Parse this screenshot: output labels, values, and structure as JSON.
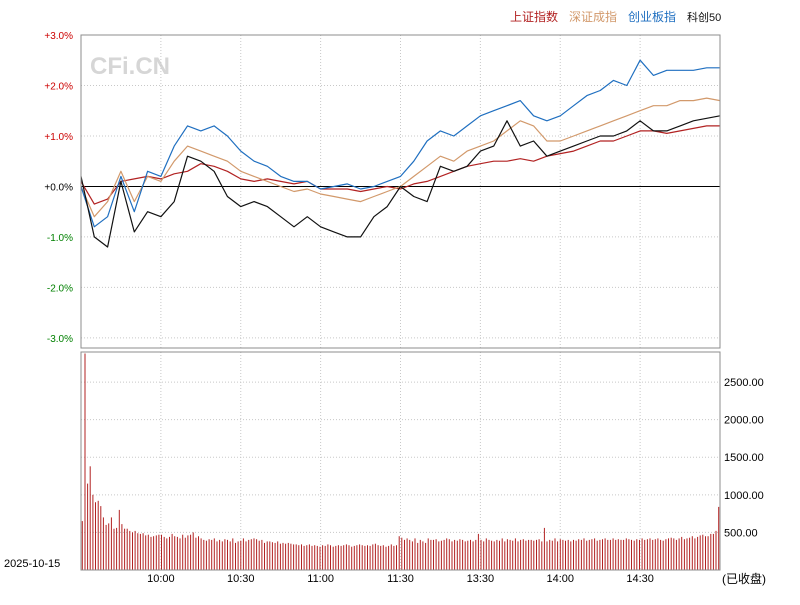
{
  "watermark": "CFi.CN",
  "date_label": "2025-10-15",
  "status_label": "(已收盘)",
  "colors": {
    "sse": "#b22222",
    "szse": "#d2996b",
    "chinext": "#1f6fc0",
    "star50": "#111111",
    "positive": "#cc0000",
    "negative": "#008000",
    "volume": "#b22222",
    "grid": "#c8c8c8",
    "zero": "#000000",
    "watermark": "#d6d6d6"
  },
  "chart_data": [
    {
      "type": "line",
      "legend": [
        "上证指数",
        "深证成指",
        "创业板指",
        "科创50"
      ],
      "legend_position": "top-right",
      "grid": true,
      "ylim": [
        -3.2,
        3.0
      ],
      "y_ticks": [
        "+3.0%",
        "+2.0%",
        "+1.0%",
        "+0.0%",
        "-1.0%",
        "-2.0%",
        "-3.0%"
      ],
      "y_tick_values": [
        3.0,
        2.0,
        1.0,
        0.0,
        -1.0,
        -2.0,
        -3.0
      ],
      "x_ticks": [
        "10:00",
        "10:30",
        "11:00",
        "11:30",
        "13:30",
        "14:00",
        "14:30"
      ],
      "x_tick_positions": [
        30,
        60,
        90,
        120,
        150,
        180,
        210
      ],
      "x_range": [
        0,
        240
      ],
      "series": [
        {
          "name": "上证指数",
          "key": "sse",
          "x": [
            0,
            5,
            10,
            15,
            20,
            25,
            30,
            35,
            40,
            45,
            50,
            55,
            60,
            65,
            70,
            75,
            80,
            85,
            90,
            95,
            100,
            105,
            110,
            115,
            120,
            125,
            130,
            135,
            140,
            145,
            150,
            155,
            160,
            165,
            170,
            175,
            180,
            185,
            190,
            195,
            200,
            205,
            210,
            215,
            220,
            225,
            230,
            235,
            240
          ],
          "values": [
            0.1,
            -0.35,
            -0.25,
            0.1,
            0.15,
            0.2,
            0.15,
            0.25,
            0.3,
            0.45,
            0.4,
            0.3,
            0.15,
            0.1,
            0.15,
            0.1,
            0.05,
            0.1,
            -0.05,
            -0.05,
            -0.05,
            -0.1,
            -0.05,
            0.0,
            -0.05,
            0.05,
            0.1,
            0.2,
            0.3,
            0.4,
            0.45,
            0.5,
            0.5,
            0.55,
            0.5,
            0.6,
            0.65,
            0.7,
            0.8,
            0.9,
            0.9,
            1.0,
            1.1,
            1.1,
            1.05,
            1.1,
            1.15,
            1.2,
            1.2
          ]
        },
        {
          "name": "深证成指",
          "key": "szse",
          "x": [
            0,
            5,
            10,
            15,
            20,
            25,
            30,
            35,
            40,
            45,
            50,
            55,
            60,
            65,
            70,
            75,
            80,
            85,
            90,
            95,
            100,
            105,
            110,
            115,
            120,
            125,
            130,
            135,
            140,
            145,
            150,
            155,
            160,
            165,
            170,
            175,
            180,
            185,
            190,
            195,
            200,
            205,
            210,
            215,
            220,
            225,
            230,
            235,
            240
          ],
          "values": [
            0.0,
            -0.6,
            -0.3,
            0.3,
            -0.3,
            0.2,
            0.1,
            0.5,
            0.8,
            0.7,
            0.6,
            0.5,
            0.3,
            0.2,
            0.1,
            0.0,
            -0.1,
            -0.05,
            -0.15,
            -0.2,
            -0.25,
            -0.3,
            -0.2,
            -0.1,
            0.0,
            0.2,
            0.4,
            0.6,
            0.5,
            0.7,
            0.8,
            0.9,
            1.1,
            1.3,
            1.2,
            0.9,
            0.9,
            1.0,
            1.1,
            1.2,
            1.3,
            1.4,
            1.5,
            1.6,
            1.6,
            1.7,
            1.7,
            1.75,
            1.7
          ]
        },
        {
          "name": "创业板指",
          "key": "chinext",
          "x": [
            0,
            5,
            10,
            15,
            20,
            25,
            30,
            35,
            40,
            45,
            50,
            55,
            60,
            65,
            70,
            75,
            80,
            85,
            90,
            95,
            100,
            105,
            110,
            115,
            120,
            125,
            130,
            135,
            140,
            145,
            150,
            155,
            160,
            165,
            170,
            175,
            180,
            185,
            190,
            195,
            200,
            205,
            210,
            215,
            220,
            225,
            230,
            235,
            240
          ],
          "values": [
            0.0,
            -0.8,
            -0.6,
            0.2,
            -0.5,
            0.3,
            0.2,
            0.8,
            1.2,
            1.1,
            1.2,
            1.0,
            0.7,
            0.5,
            0.4,
            0.2,
            0.1,
            0.1,
            -0.05,
            0.0,
            0.05,
            -0.05,
            0.0,
            0.1,
            0.2,
            0.5,
            0.9,
            1.1,
            1.0,
            1.2,
            1.4,
            1.5,
            1.6,
            1.7,
            1.4,
            1.3,
            1.4,
            1.6,
            1.8,
            1.9,
            2.1,
            2.0,
            2.5,
            2.2,
            2.3,
            2.3,
            2.3,
            2.35,
            2.35
          ]
        },
        {
          "name": "科创50",
          "key": "star50",
          "x": [
            0,
            5,
            10,
            15,
            20,
            25,
            30,
            35,
            40,
            45,
            50,
            55,
            60,
            65,
            70,
            75,
            80,
            85,
            90,
            95,
            100,
            105,
            110,
            115,
            120,
            125,
            130,
            135,
            140,
            145,
            150,
            155,
            160,
            165,
            170,
            175,
            180,
            185,
            190,
            195,
            200,
            205,
            210,
            215,
            220,
            225,
            230,
            235,
            240
          ],
          "values": [
            0.2,
            -1.0,
            -1.2,
            0.1,
            -0.9,
            -0.5,
            -0.6,
            -0.3,
            0.6,
            0.5,
            0.3,
            -0.2,
            -0.4,
            -0.3,
            -0.4,
            -0.6,
            -0.8,
            -0.6,
            -0.8,
            -0.9,
            -1.0,
            -1.0,
            -0.6,
            -0.4,
            0.0,
            -0.2,
            -0.3,
            0.4,
            0.3,
            0.4,
            0.7,
            0.8,
            1.3,
            0.8,
            0.9,
            0.6,
            0.7,
            0.8,
            0.9,
            1.0,
            1.0,
            1.1,
            1.3,
            1.1,
            1.1,
            1.2,
            1.3,
            1.35,
            1.4
          ]
        }
      ]
    },
    {
      "type": "bar",
      "series_name": "volume",
      "grid": true,
      "ylim": [
        0,
        2900
      ],
      "y_ticks": [
        "2500.00",
        "2000.00",
        "1500.00",
        "1000.00",
        "500.00"
      ],
      "y_tick_values": [
        2500,
        2000,
        1500,
        1000,
        500
      ],
      "x_ticks": [
        "10:00",
        "10:30",
        "11:00",
        "11:30",
        "13:30",
        "14:00",
        "14:30"
      ],
      "x_tick_positions": [
        30,
        60,
        90,
        120,
        150,
        180,
        210
      ],
      "x_range": [
        0,
        240
      ],
      "values": [
        650,
        2880,
        1150,
        1380,
        1000,
        900,
        920,
        850,
        700,
        600,
        620,
        700,
        550,
        560,
        800,
        610,
        550,
        550,
        520,
        500,
        520,
        490,
        480,
        490,
        460,
        470,
        440,
        450,
        460,
        470,
        470,
        440,
        420,
        440,
        480,
        450,
        440,
        420,
        470,
        430,
        460,
        470,
        500,
        430,
        450,
        420,
        400,
        390,
        410,
        400,
        420,
        380,
        400,
        380,
        410,
        400,
        380,
        420,
        360,
        380,
        390,
        420,
        380,
        400,
        410,
        420,
        410,
        390,
        400,
        360,
        380,
        380,
        370,
        360,
        380,
        350,
        360,
        350,
        360,
        350,
        340,
        340,
        330,
        340,
        320,
        330,
        340,
        320,
        330,
        320,
        310,
        330,
        320,
        340,
        330,
        310,
        320,
        330,
        320,
        330,
        340,
        330,
        310,
        320,
        330,
        340,
        330,
        320,
        330,
        320,
        340,
        350,
        330,
        320,
        330,
        310,
        320,
        340,
        320,
        330,
        450,
        430,
        400,
        420,
        400,
        380,
        420,
        360,
        400,
        380,
        360,
        420,
        400,
        400,
        410,
        380,
        390,
        400,
        420,
        410,
        380,
        400,
        390,
        410,
        400,
        380,
        390,
        400,
        380,
        400,
        480,
        400,
        380,
        420,
        400,
        390,
        380,
        400,
        390,
        420,
        380,
        410,
        400,
        390,
        420,
        380,
        400,
        410,
        390,
        400,
        400,
        390,
        400,
        410,
        380,
        560,
        380,
        400,
        390,
        420,
        380,
        410,
        400,
        390,
        400,
        380,
        400,
        390,
        410,
        400,
        420,
        390,
        400,
        410,
        420,
        390,
        400,
        410,
        420,
        400,
        400,
        420,
        400,
        410,
        400,
        400,
        420,
        410,
        400,
        390,
        410,
        400,
        420,
        400,
        410,
        420,
        400,
        410,
        420,
        400,
        390,
        410,
        420,
        430,
        420,
        400,
        420,
        440,
        410,
        420,
        430,
        450,
        420,
        440,
        460,
        470,
        450,
        450,
        480,
        480,
        520,
        840
      ]
    }
  ]
}
